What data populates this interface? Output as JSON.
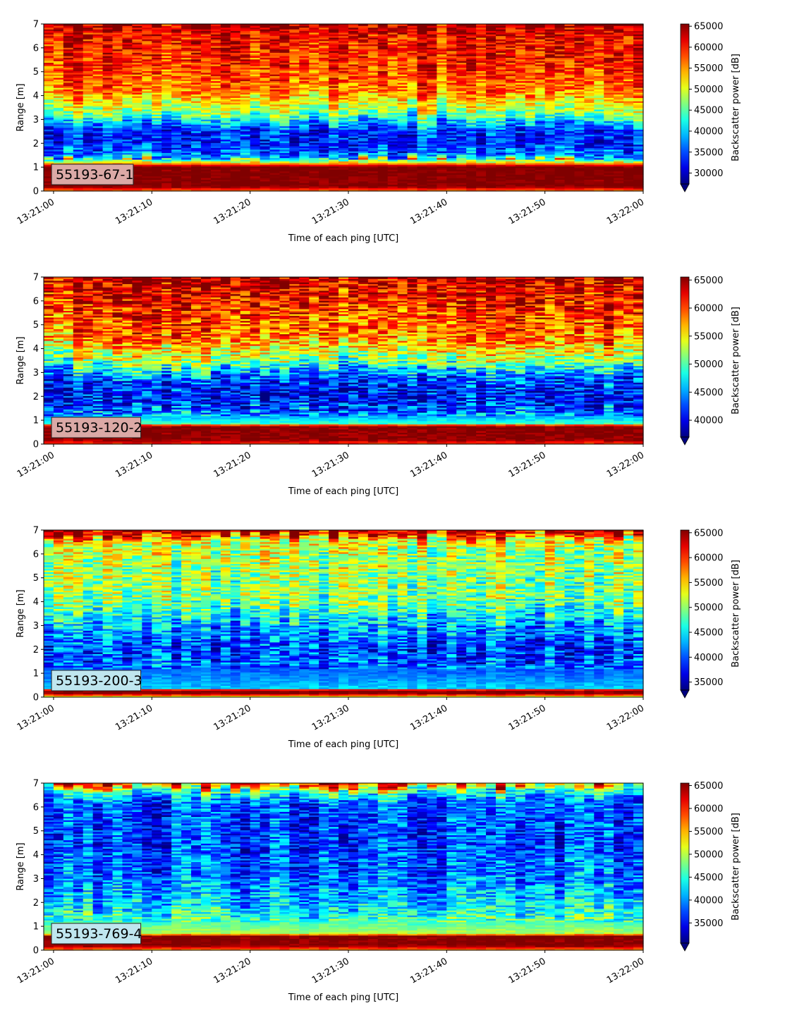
{
  "chart_data": [
    {
      "type": "heatmap",
      "label": "55193-67-1",
      "label_bg": "#dba9a6",
      "xlabel": "Time of each ping [UTC]",
      "ylabel": "Range [m]",
      "x_ticks": [
        "13:21:00",
        "13:21:10",
        "13:21:20",
        "13:21:30",
        "13:21:40",
        "13:21:50",
        "13:22:00"
      ],
      "x_range": [
        "13:20:59",
        "13:22:00"
      ],
      "y_ticks": [
        0,
        1,
        2,
        3,
        4,
        5,
        6,
        7
      ],
      "ylim": [
        0,
        7
      ],
      "colorbar_label": "Backscatter power [dB]",
      "colorbar_ticks": [
        30000,
        35000,
        40000,
        45000,
        50000,
        55000,
        60000,
        65000
      ],
      "clim": [
        27400,
        65535
      ],
      "colorbar_extend": "min",
      "colormap": "jet",
      "seed": 11,
      "profile": [
        {
          "range_m": 0.0,
          "value": 55000
        },
        {
          "range_m": 0.2,
          "value": 65535
        },
        {
          "range_m": 1.05,
          "value": 65535
        },
        {
          "range_m": 1.15,
          "value": 56000
        },
        {
          "range_m": 1.4,
          "value": 38000
        },
        {
          "range_m": 2.0,
          "value": 33000
        },
        {
          "range_m": 2.6,
          "value": 34000
        },
        {
          "range_m": 3.3,
          "value": 47000
        },
        {
          "range_m": 4.2,
          "value": 56000
        },
        {
          "range_m": 5.5,
          "value": 60000
        },
        {
          "range_m": 6.6,
          "value": 61000
        },
        {
          "range_m": 7.0,
          "value": 64000
        }
      ]
    },
    {
      "type": "heatmap",
      "label": "55193-120-2",
      "label_bg": "#dba9a6",
      "xlabel": "Time of each ping [UTC]",
      "ylabel": "Range [m]",
      "x_ticks": [
        "13:21:00",
        "13:21:10",
        "13:21:20",
        "13:21:30",
        "13:21:40",
        "13:21:50",
        "13:22:00"
      ],
      "x_range": [
        "13:20:59",
        "13:22:00"
      ],
      "y_ticks": [
        0,
        1,
        2,
        3,
        4,
        5,
        6,
        7
      ],
      "ylim": [
        0,
        7
      ],
      "colorbar_label": "Backscatter power [dB]",
      "colorbar_ticks": [
        40000,
        45000,
        50000,
        55000,
        60000,
        65000
      ],
      "clim": [
        37000,
        65535
      ],
      "colorbar_extend": "min",
      "colormap": "jet",
      "seed": 23,
      "profile": [
        {
          "range_m": 0.0,
          "value": 60000
        },
        {
          "range_m": 0.2,
          "value": 65535
        },
        {
          "range_m": 0.78,
          "value": 65535
        },
        {
          "range_m": 0.85,
          "value": 50000
        },
        {
          "range_m": 1.2,
          "value": 45000
        },
        {
          "range_m": 2.0,
          "value": 41000
        },
        {
          "range_m": 2.8,
          "value": 43000
        },
        {
          "range_m": 3.6,
          "value": 53000
        },
        {
          "range_m": 4.5,
          "value": 59000
        },
        {
          "range_m": 6.0,
          "value": 62000
        },
        {
          "range_m": 7.0,
          "value": 64500
        }
      ]
    },
    {
      "type": "heatmap",
      "label": "55193-200-3",
      "label_bg": "#bfe6ef",
      "xlabel": "Time of each ping [UTC]",
      "ylabel": "Range [m]",
      "x_ticks": [
        "13:21:00",
        "13:21:10",
        "13:21:20",
        "13:21:30",
        "13:21:40",
        "13:21:50",
        "13:22:00"
      ],
      "x_range": [
        "13:20:59",
        "13:22:00"
      ],
      "y_ticks": [
        0,
        1,
        2,
        3,
        4,
        5,
        6,
        7
      ],
      "ylim": [
        0,
        7
      ],
      "colorbar_label": "Backscatter power [dB]",
      "colorbar_ticks": [
        35000,
        40000,
        45000,
        50000,
        55000,
        60000,
        65000
      ],
      "clim": [
        33400,
        65535
      ],
      "colorbar_extend": "min",
      "colormap": "jet",
      "seed": 37,
      "profile": [
        {
          "range_m": 0.0,
          "value": 50000
        },
        {
          "range_m": 0.15,
          "value": 65535
        },
        {
          "range_m": 0.3,
          "value": 65535
        },
        {
          "range_m": 0.38,
          "value": 44000
        },
        {
          "range_m": 1.0,
          "value": 41000
        },
        {
          "range_m": 2.0,
          "value": 39000
        },
        {
          "range_m": 3.0,
          "value": 43000
        },
        {
          "range_m": 4.0,
          "value": 49500
        },
        {
          "range_m": 5.5,
          "value": 50500
        },
        {
          "range_m": 6.5,
          "value": 52000
        },
        {
          "range_m": 6.85,
          "value": 62000
        },
        {
          "range_m": 7.0,
          "value": 65000
        }
      ]
    },
    {
      "type": "heatmap",
      "label": "55193-769-4",
      "label_bg": "#bfe6ef",
      "xlabel": "Time of each ping [UTC]",
      "ylabel": "Range [m]",
      "x_ticks": [
        "13:21:00",
        "13:21:10",
        "13:21:20",
        "13:21:30",
        "13:21:40",
        "13:21:50",
        "13:22:00"
      ],
      "x_range": [
        "13:20:59",
        "13:22:00"
      ],
      "y_ticks": [
        0,
        1,
        2,
        3,
        4,
        5,
        6,
        7
      ],
      "ylim": [
        0,
        7
      ],
      "colorbar_label": "Backscatter power [dB]",
      "colorbar_ticks": [
        35000,
        40000,
        45000,
        50000,
        55000,
        60000,
        65000
      ],
      "clim": [
        30600,
        65535
      ],
      "colorbar_extend": "min",
      "colormap": "jet",
      "seed": 53,
      "profile": [
        {
          "range_m": 0.0,
          "value": 55000
        },
        {
          "range_m": 0.2,
          "value": 65535
        },
        {
          "range_m": 0.62,
          "value": 65535
        },
        {
          "range_m": 0.7,
          "value": 50000
        },
        {
          "range_m": 1.2,
          "value": 46000
        },
        {
          "range_m": 2.0,
          "value": 42000
        },
        {
          "range_m": 3.0,
          "value": 39000
        },
        {
          "range_m": 4.5,
          "value": 37000
        },
        {
          "range_m": 6.2,
          "value": 38000
        },
        {
          "range_m": 6.75,
          "value": 48000
        },
        {
          "range_m": 7.0,
          "value": 62000
        }
      ]
    }
  ]
}
